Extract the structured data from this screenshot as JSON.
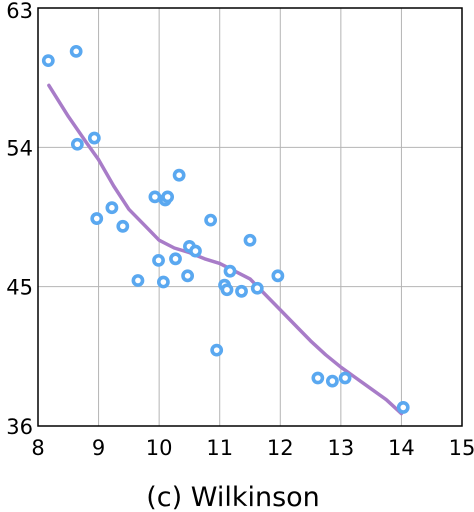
{
  "chart_data": {
    "type": "scatter",
    "caption": "(c) Wilkinson",
    "xlim": [
      8,
      15
    ],
    "ylim": [
      36,
      63
    ],
    "xticks": [
      8,
      9,
      10,
      11,
      12,
      13,
      14,
      15
    ],
    "yticks": [
      36,
      45,
      54,
      63
    ],
    "grid": true,
    "colors": {
      "points": "#5aa8f0",
      "trend": "#a87cc8",
      "grid": "#b4b4b4",
      "axis": "#000000"
    },
    "points": [
      {
        "x": 8.17,
        "y": 59.6
      },
      {
        "x": 8.63,
        "y": 60.2
      },
      {
        "x": 8.65,
        "y": 54.2
      },
      {
        "x": 8.93,
        "y": 54.6
      },
      {
        "x": 8.97,
        "y": 49.4
      },
      {
        "x": 9.22,
        "y": 50.1
      },
      {
        "x": 9.4,
        "y": 48.9
      },
      {
        "x": 9.65,
        "y": 45.4
      },
      {
        "x": 9.93,
        "y": 50.8
      },
      {
        "x": 9.99,
        "y": 46.7
      },
      {
        "x": 10.07,
        "y": 45.3
      },
      {
        "x": 10.1,
        "y": 50.6
      },
      {
        "x": 10.14,
        "y": 50.8
      },
      {
        "x": 10.27,
        "y": 46.8
      },
      {
        "x": 10.33,
        "y": 52.2
      },
      {
        "x": 10.47,
        "y": 45.7
      },
      {
        "x": 10.5,
        "y": 47.6
      },
      {
        "x": 10.6,
        "y": 47.3
      },
      {
        "x": 10.85,
        "y": 49.3
      },
      {
        "x": 10.95,
        "y": 40.9
      },
      {
        "x": 11.08,
        "y": 45.1
      },
      {
        "x": 11.12,
        "y": 44.8
      },
      {
        "x": 11.17,
        "y": 46.0
      },
      {
        "x": 11.36,
        "y": 44.7
      },
      {
        "x": 11.5,
        "y": 48.0
      },
      {
        "x": 11.62,
        "y": 44.9
      },
      {
        "x": 11.96,
        "y": 45.7
      },
      {
        "x": 12.62,
        "y": 39.1
      },
      {
        "x": 12.86,
        "y": 38.9
      },
      {
        "x": 13.07,
        "y": 39.1
      },
      {
        "x": 14.03,
        "y": 37.2
      }
    ],
    "trend": [
      {
        "x": 8.18,
        "y": 58.0
      },
      {
        "x": 8.5,
        "y": 56.0
      },
      {
        "x": 8.8,
        "y": 54.3
      },
      {
        "x": 9.0,
        "y": 53.2
      },
      {
        "x": 9.25,
        "y": 51.5
      },
      {
        "x": 9.5,
        "y": 50.0
      },
      {
        "x": 9.75,
        "y": 49.0
      },
      {
        "x": 10.0,
        "y": 48.0
      },
      {
        "x": 10.25,
        "y": 47.5
      },
      {
        "x": 10.5,
        "y": 47.2
      },
      {
        "x": 10.75,
        "y": 46.8
      },
      {
        "x": 11.0,
        "y": 46.5
      },
      {
        "x": 11.25,
        "y": 46.0
      },
      {
        "x": 11.5,
        "y": 45.5
      },
      {
        "x": 11.75,
        "y": 44.5
      },
      {
        "x": 12.0,
        "y": 43.5
      },
      {
        "x": 12.25,
        "y": 42.5
      },
      {
        "x": 12.5,
        "y": 41.5
      },
      {
        "x": 12.75,
        "y": 40.6
      },
      {
        "x": 13.0,
        "y": 39.8
      },
      {
        "x": 13.25,
        "y": 39.1
      },
      {
        "x": 13.5,
        "y": 38.4
      },
      {
        "x": 13.75,
        "y": 37.7
      },
      {
        "x": 14.0,
        "y": 36.8
      }
    ]
  }
}
